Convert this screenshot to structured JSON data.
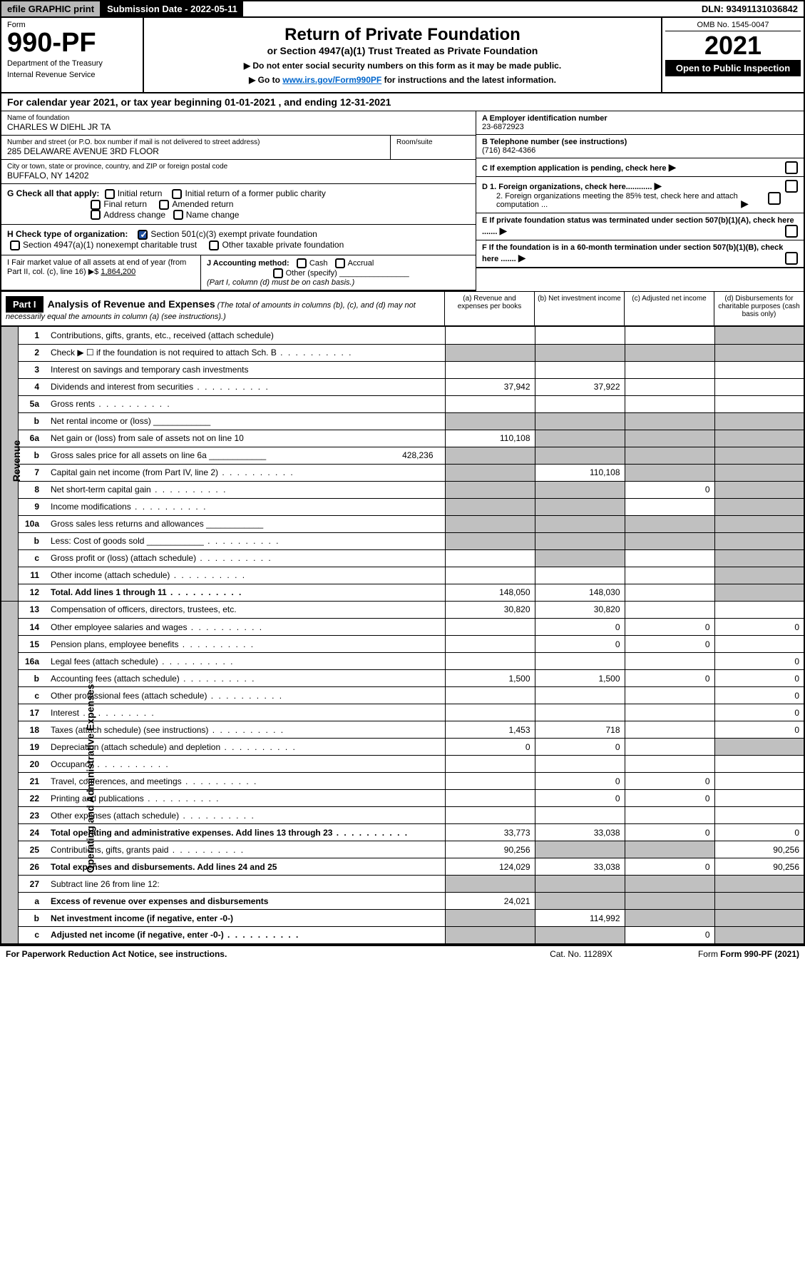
{
  "top": {
    "efile": "efile GRAPHIC print",
    "sub_date_label": "Submission Date - 2022-05-11",
    "dln": "DLN: 93491131036842"
  },
  "header": {
    "form_word": "Form",
    "form_no": "990-PF",
    "dept": "Department of the Treasury",
    "irs": "Internal Revenue Service",
    "title": "Return of Private Foundation",
    "subtitle": "or Section 4947(a)(1) Trust Treated as Private Foundation",
    "instr1": "▶ Do not enter social security numbers on this form as it may be made public.",
    "instr2_pre": "▶ Go to ",
    "instr2_link": "www.irs.gov/Form990PF",
    "instr2_post": " for instructions and the latest information.",
    "omb": "OMB No. 1545-0047",
    "year": "2021",
    "open": "Open to Public Inspection"
  },
  "cal_year": "For calendar year 2021, or tax year beginning 01-01-2021           , and ending 12-31-2021",
  "info": {
    "name_label": "Name of foundation",
    "name": "CHARLES W DIEHL JR TA",
    "addr_label": "Number and street (or P.O. box number if mail is not delivered to street address)",
    "addr": "285 DELAWARE AVENUE 3RD FLOOR",
    "room_label": "Room/suite",
    "city_label": "City or town, state or province, country, and ZIP or foreign postal code",
    "city": "BUFFALO, NY  14202",
    "a_label": "A Employer identification number",
    "a_val": "23-6872923",
    "b_label": "B Telephone number (see instructions)",
    "b_val": "(716) 842-4366",
    "c_label": "C If exemption application is pending, check here",
    "d1": "D 1. Foreign organizations, check here............",
    "d2": "2. Foreign organizations meeting the 85% test, check here and attach computation ...",
    "e": "E  If private foundation status was terminated under section 507(b)(1)(A), check here .......",
    "f": "F  If the foundation is in a 60-month termination under section 507(b)(1)(B), check here .......",
    "g": "G Check all that apply:",
    "g_opts": [
      "Initial return",
      "Initial return of a former public charity",
      "Final return",
      "Amended return",
      "Address change",
      "Name change"
    ],
    "h": "H Check type of organization:",
    "h1": "Section 501(c)(3) exempt private foundation",
    "h2": "Section 4947(a)(1) nonexempt charitable trust",
    "h3": "Other taxable private foundation",
    "i": "I Fair market value of all assets at end of year (from Part II, col. (c), line 16) ▶$ ",
    "i_val": "1,864,200",
    "j": "J Accounting method:",
    "j_cash": "Cash",
    "j_accrual": "Accrual",
    "j_other": "Other (specify)",
    "j_note": "(Part I, column (d) must be on cash basis.)"
  },
  "part1": {
    "label": "Part I",
    "title": "Analysis of Revenue and Expenses",
    "title_note": " (The total of amounts in columns (b), (c), and (d) may not necessarily equal the amounts in column (a) (see instructions).)",
    "cols": {
      "a": "(a)  Revenue and expenses per books",
      "b": "(b)  Net investment income",
      "c": "(c)  Adjusted net income",
      "d": "(d)  Disbursements for charitable purposes (cash basis only)"
    }
  },
  "side": {
    "rev": "Revenue",
    "exp": "Operating and Administrative Expenses"
  },
  "rows": [
    {
      "n": "1",
      "t": "Contributions, gifts, grants, etc., received (attach schedule)",
      "shade_d": true
    },
    {
      "n": "2",
      "t": "Check ▶ ☐ if the foundation is not required to attach Sch. B",
      "dots": true,
      "all_shade": true
    },
    {
      "n": "3",
      "t": "Interest on savings and temporary cash investments"
    },
    {
      "n": "4",
      "t": "Dividends and interest from securities",
      "dots": true,
      "a": "37,942",
      "b": "37,922"
    },
    {
      "n": "5a",
      "t": "Gross rents",
      "dots": true
    },
    {
      "n": "b",
      "t": "Net rental income or (loss)",
      "inline_box": true,
      "all_shade": true
    },
    {
      "n": "6a",
      "t": "Net gain or (loss) from sale of assets not on line 10",
      "a": "110,108",
      "shade_bcd": true
    },
    {
      "n": "b",
      "t": "Gross sales price for all assets on line 6a",
      "inline_val": "428,236",
      "all_shade": true
    },
    {
      "n": "7",
      "t": "Capital gain net income (from Part IV, line 2)",
      "dots": true,
      "b": "110,108",
      "shade_a": true,
      "shade_cd": true
    },
    {
      "n": "8",
      "t": "Net short-term capital gain",
      "dots": true,
      "c": "0",
      "shade_ab": true,
      "shade_d": true
    },
    {
      "n": "9",
      "t": "Income modifications",
      "dots": true,
      "shade_ab": true,
      "shade_d": true
    },
    {
      "n": "10a",
      "t": "Gross sales less returns and allowances",
      "inline_box": true,
      "all_shade": true
    },
    {
      "n": "b",
      "t": "Less: Cost of goods sold",
      "dots": true,
      "inline_box": true,
      "all_shade": true
    },
    {
      "n": "c",
      "t": "Gross profit or (loss) (attach schedule)",
      "dots": true,
      "shade_b": true,
      "shade_d": true
    },
    {
      "n": "11",
      "t": "Other income (attach schedule)",
      "dots": true,
      "shade_d": true
    },
    {
      "n": "12",
      "t": "Total. Add lines 1 through 11",
      "dots": true,
      "bold": true,
      "a": "148,050",
      "b": "148,030",
      "shade_d": true
    }
  ],
  "exp_rows": [
    {
      "n": "13",
      "t": "Compensation of officers, directors, trustees, etc.",
      "a": "30,820",
      "b": "30,820"
    },
    {
      "n": "14",
      "t": "Other employee salaries and wages",
      "dots": true,
      "b": "0",
      "c": "0",
      "d": "0"
    },
    {
      "n": "15",
      "t": "Pension plans, employee benefits",
      "dots": true,
      "b": "0",
      "c": "0"
    },
    {
      "n": "16a",
      "t": "Legal fees (attach schedule)",
      "dots": true,
      "d": "0"
    },
    {
      "n": "b",
      "t": "Accounting fees (attach schedule)",
      "dots": true,
      "a": "1,500",
      "b": "1,500",
      "c": "0",
      "d": "0"
    },
    {
      "n": "c",
      "t": "Other professional fees (attach schedule)",
      "dots": true,
      "d": "0"
    },
    {
      "n": "17",
      "t": "Interest",
      "dots": true,
      "d": "0"
    },
    {
      "n": "18",
      "t": "Taxes (attach schedule) (see instructions)",
      "dots": true,
      "a": "1,453",
      "b": "718",
      "d": "0"
    },
    {
      "n": "19",
      "t": "Depreciation (attach schedule) and depletion",
      "dots": true,
      "a": "0",
      "b": "0",
      "shade_d": true
    },
    {
      "n": "20",
      "t": "Occupancy",
      "dots": true
    },
    {
      "n": "21",
      "t": "Travel, conferences, and meetings",
      "dots": true,
      "b": "0",
      "c": "0"
    },
    {
      "n": "22",
      "t": "Printing and publications",
      "dots": true,
      "b": "0",
      "c": "0"
    },
    {
      "n": "23",
      "t": "Other expenses (attach schedule)",
      "dots": true
    },
    {
      "n": "24",
      "t": "Total operating and administrative expenses. Add lines 13 through 23",
      "dots": true,
      "bold": true,
      "a": "33,773",
      "b": "33,038",
      "c": "0",
      "d": "0"
    },
    {
      "n": "25",
      "t": "Contributions, gifts, grants paid",
      "dots": true,
      "a": "90,256",
      "shade_bc": true,
      "d": "90,256"
    },
    {
      "n": "26",
      "t": "Total expenses and disbursements. Add lines 24 and 25",
      "bold": true,
      "a": "124,029",
      "b": "33,038",
      "c": "0",
      "d": "90,256"
    },
    {
      "n": "27",
      "t": "Subtract line 26 from line 12:",
      "all_shade": true
    },
    {
      "n": "a",
      "t": "Excess of revenue over expenses and disbursements",
      "bold": true,
      "a": "24,021",
      "shade_bcd": true
    },
    {
      "n": "b",
      "t": "Net investment income (if negative, enter -0-)",
      "bold": true,
      "b": "114,992",
      "shade_a": true,
      "shade_cd": true
    },
    {
      "n": "c",
      "t": "Adjusted net income (if negative, enter -0-)",
      "bold": true,
      "dots": true,
      "c": "0",
      "shade_ab": true,
      "shade_d": true
    }
  ],
  "footer": {
    "left": "For Paperwork Reduction Act Notice, see instructions.",
    "mid": "Cat. No. 11289X",
    "right": "Form 990-PF (2021)"
  }
}
